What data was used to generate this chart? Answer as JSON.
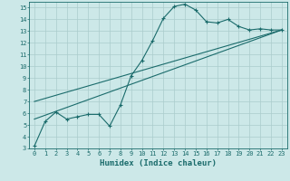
{
  "title": "",
  "xlabel": "Humidex (Indice chaleur)",
  "ylabel": "",
  "bg_color": "#cce8e8",
  "line_color": "#1a6b6b",
  "xlim": [
    -0.5,
    23.5
  ],
  "ylim": [
    3,
    15.5
  ],
  "xticks": [
    0,
    1,
    2,
    3,
    4,
    5,
    6,
    7,
    8,
    9,
    10,
    11,
    12,
    13,
    14,
    15,
    16,
    17,
    18,
    19,
    20,
    21,
    22,
    23
  ],
  "yticks": [
    3,
    4,
    5,
    6,
    7,
    8,
    9,
    10,
    11,
    12,
    13,
    14,
    15
  ],
  "curve_x": [
    0,
    1,
    2,
    3,
    4,
    5,
    6,
    7,
    8,
    9,
    10,
    11,
    12,
    13,
    14,
    15,
    16,
    17,
    18,
    19,
    20,
    21,
    22,
    23
  ],
  "curve_y": [
    3.2,
    5.3,
    6.1,
    5.5,
    5.7,
    5.9,
    5.9,
    4.9,
    6.7,
    9.2,
    10.5,
    12.2,
    14.1,
    15.1,
    15.3,
    14.8,
    13.8,
    13.7,
    14.0,
    13.4,
    13.1,
    13.2,
    13.1,
    13.1
  ],
  "trend1_x": [
    0,
    23
  ],
  "trend1_y": [
    5.5,
    13.1
  ],
  "trend2_x": [
    0,
    23
  ],
  "trend2_y": [
    7.0,
    13.1
  ],
  "grid_color": "#aacccc",
  "xlabel_fontsize": 6.5,
  "tick_fontsize": 5.0
}
